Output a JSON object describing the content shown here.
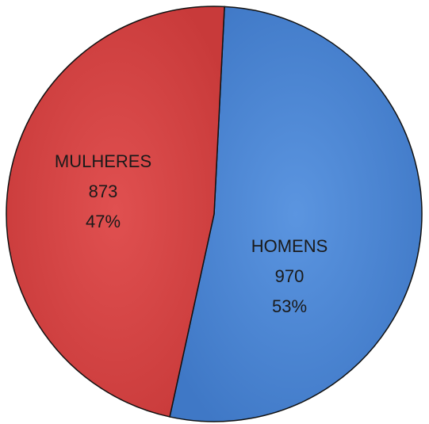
{
  "chart_data": {
    "type": "pie",
    "categories": [
      "HOMENS",
      "MULHERES"
    ],
    "values": [
      970,
      873
    ],
    "percentages": [
      53,
      47
    ],
    "percentage_labels": [
      "53%",
      "47%"
    ],
    "colors": [
      "#4a86d4",
      "#d64545"
    ]
  }
}
